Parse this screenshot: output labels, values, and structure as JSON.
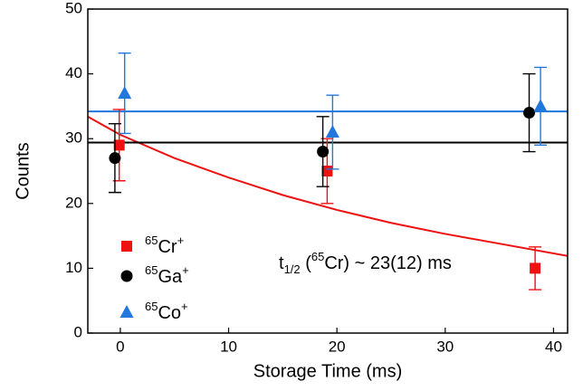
{
  "chart_data": {
    "type": "scatter",
    "xlabel": "Storage Time (ms)",
    "ylabel": "Counts",
    "xlim": [
      -3,
      41.3
    ],
    "ylim": [
      0,
      50
    ],
    "xticks": [
      0,
      10,
      20,
      30,
      40
    ],
    "yticks": [
      0,
      10,
      20,
      30,
      40,
      50
    ],
    "series": [
      {
        "name": [
          "65",
          "Cr",
          "+"
        ],
        "color": "#ee1111",
        "marker": "square",
        "x": [
          -0.1,
          19.1,
          38.3
        ],
        "values": [
          29,
          25,
          10
        ],
        "errors": [
          5.5,
          5,
          3.3
        ]
      },
      {
        "name": [
          "65",
          "Ga",
          "+"
        ],
        "color": "#000000",
        "marker": "circle",
        "x": [
          -0.5,
          18.7,
          37.75
        ],
        "values": [
          27,
          28,
          34
        ],
        "errors": [
          5.3,
          5.4,
          6
        ]
      },
      {
        "name": [
          "65",
          "Co",
          "+"
        ],
        "color": "#2277dd",
        "marker": "triangle",
        "x": [
          0.4,
          19.6,
          38.8
        ],
        "values": [
          37,
          31,
          35
        ],
        "errors": [
          6.2,
          5.7,
          6
        ]
      }
    ],
    "fits": [
      {
        "color": "#ee1111",
        "x": [
          -3,
          0,
          5,
          10,
          15,
          20,
          25,
          30,
          35,
          41.3
        ],
        "values": [
          33.4,
          30.6,
          27,
          24,
          21.3,
          19,
          17,
          15.3,
          13.8,
          11.9
        ]
      },
      {
        "color": "#000000",
        "x": [
          -3,
          41.3
        ],
        "values": [
          29.4,
          29.4
        ]
      },
      {
        "color": "#2277dd",
        "x": [
          -3,
          41.3
        ],
        "values": [
          34.2,
          34.2
        ]
      }
    ],
    "annotation": [
      "t",
      "1/2",
      " (",
      "65",
      "Cr) ~ 23(12) ms"
    ]
  }
}
